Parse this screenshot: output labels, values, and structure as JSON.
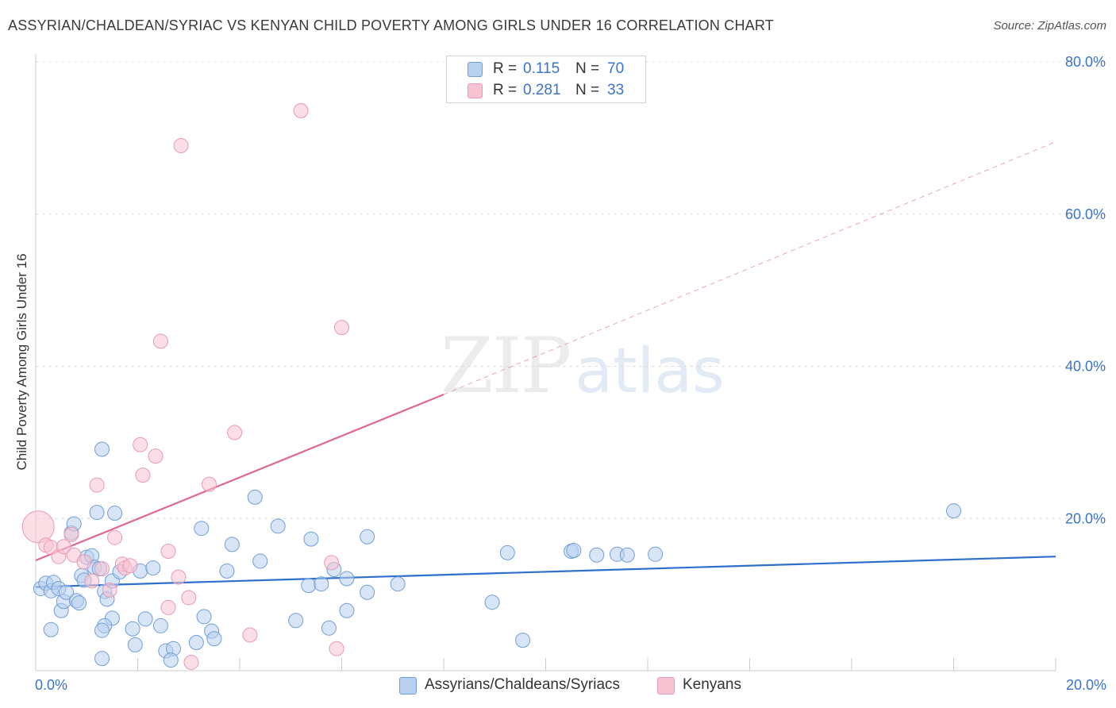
{
  "header": {
    "title": "ASSYRIAN/CHALDEAN/SYRIAC VS KENYAN CHILD POVERTY AMONG GIRLS UNDER 16 CORRELATION CHART",
    "source": "Source: ZipAtlas.com"
  },
  "watermark": {
    "zip": "ZIP",
    "atlas": "atlas"
  },
  "legend": {
    "rows": [
      {
        "r_label": "R =",
        "r_value": "0.115",
        "n_label": "N =",
        "n_value": "70"
      },
      {
        "r_label": "R =",
        "r_value": "0.281",
        "n_label": "N =",
        "n_value": "33"
      }
    ]
  },
  "bottom_legend": {
    "series_a": "Assyrians/Chaldeans/Syriacs",
    "series_b": "Kenyans"
  },
  "colors": {
    "blue_fill": "#b8d0f0",
    "blue_stroke": "#6f9ed8",
    "blue_line": "#2f6fcc",
    "pink_fill": "#f7c3d2",
    "pink_stroke": "#e79ab2",
    "pink_line": "#e0678f",
    "axis_text": "#3a74c9",
    "grid": "#dddddd"
  },
  "chart_data": {
    "type": "scatter",
    "title": "ASSYRIAN/CHALDEAN/SYRIAC VS KENYAN CHILD POVERTY AMONG GIRLS UNDER 16 CORRELATION CHART",
    "xlabel": "",
    "ylabel": "Child Poverty Among Girls Under 16",
    "xlim": [
      0,
      20
    ],
    "ylim": [
      0,
      80
    ],
    "x_tick_labels": [
      {
        "value": 0,
        "label": "0.0%"
      },
      {
        "value": 20,
        "label": "20.0%"
      }
    ],
    "y_tick_labels": [
      {
        "value": 20,
        "label": "20.0%"
      },
      {
        "value": 40,
        "label": "40.0%"
      },
      {
        "value": 60,
        "label": "60.0%"
      },
      {
        "value": 80,
        "label": "80.0%"
      }
    ],
    "x_minor_ticks": [
      2,
      4,
      6,
      8,
      10,
      12,
      14,
      16,
      18,
      20
    ],
    "series": [
      {
        "name": "Assyrians/Chaldeans/Syriacs",
        "color": "blue",
        "points": [
          [
            0.1,
            10.8
          ],
          [
            0.2,
            11.5
          ],
          [
            0.3,
            10.5
          ],
          [
            0.35,
            11.6
          ],
          [
            0.45,
            10.8
          ],
          [
            0.5,
            7.9
          ],
          [
            0.55,
            9.1
          ],
          [
            0.6,
            10.3
          ],
          [
            0.7,
            18.1
          ],
          [
            0.75,
            19.3
          ],
          [
            0.8,
            9.2
          ],
          [
            0.85,
            8.9
          ],
          [
            0.9,
            12.5
          ],
          [
            0.95,
            11.9
          ],
          [
            1.0,
            14.9
          ],
          [
            1.1,
            15.1
          ],
          [
            1.15,
            13.6
          ],
          [
            1.2,
            20.8
          ],
          [
            1.25,
            13.4
          ],
          [
            1.3,
            29.1
          ],
          [
            1.35,
            10.4
          ],
          [
            1.4,
            9.4
          ],
          [
            1.5,
            11.8
          ],
          [
            1.55,
            20.7
          ],
          [
            1.65,
            13.0
          ],
          [
            1.5,
            6.9
          ],
          [
            1.35,
            5.9
          ],
          [
            1.3,
            5.3
          ],
          [
            1.9,
            5.5
          ],
          [
            1.95,
            3.4
          ],
          [
            2.05,
            13.1
          ],
          [
            2.15,
            6.8
          ],
          [
            2.3,
            13.5
          ],
          [
            2.45,
            5.9
          ],
          [
            2.55,
            2.6
          ],
          [
            2.7,
            2.9
          ],
          [
            2.65,
            1.4
          ],
          [
            3.25,
            18.7
          ],
          [
            3.3,
            7.1
          ],
          [
            3.45,
            5.2
          ],
          [
            3.5,
            4.2
          ],
          [
            3.75,
            13.1
          ],
          [
            3.85,
            16.6
          ],
          [
            4.3,
            22.8
          ],
          [
            4.4,
            14.4
          ],
          [
            4.75,
            19.0
          ],
          [
            5.1,
            6.6
          ],
          [
            5.35,
            11.2
          ],
          [
            5.4,
            17.3
          ],
          [
            5.6,
            11.4
          ],
          [
            5.75,
            5.6
          ],
          [
            5.85,
            13.3
          ],
          [
            6.1,
            12.1
          ],
          [
            6.1,
            7.9
          ],
          [
            6.5,
            10.3
          ],
          [
            6.5,
            17.6
          ],
          [
            7.1,
            11.4
          ],
          [
            8.95,
            9.0
          ],
          [
            9.25,
            15.5
          ],
          [
            9.55,
            4.0
          ],
          [
            10.5,
            15.7
          ],
          [
            10.55,
            15.8
          ],
          [
            11.0,
            15.2
          ],
          [
            11.4,
            15.3
          ],
          [
            11.6,
            15.2
          ],
          [
            12.15,
            15.3
          ],
          [
            18.0,
            21.0
          ],
          [
            1.3,
            1.6
          ],
          [
            0.3,
            5.4
          ],
          [
            3.15,
            3.7
          ]
        ],
        "trend": {
          "x": [
            0,
            20
          ],
          "y": [
            11.0,
            15.0
          ],
          "style": "solid"
        }
      },
      {
        "name": "Kenyans",
        "color": "pink",
        "points": [
          [
            0.05,
            18.9
          ],
          [
            0.2,
            16.5
          ],
          [
            0.3,
            16.2
          ],
          [
            0.45,
            15.0
          ],
          [
            0.55,
            16.3
          ],
          [
            0.7,
            17.9
          ],
          [
            0.75,
            15.2
          ],
          [
            0.95,
            14.3
          ],
          [
            1.1,
            11.8
          ],
          [
            1.2,
            24.4
          ],
          [
            1.3,
            13.4
          ],
          [
            1.45,
            10.6
          ],
          [
            1.55,
            17.5
          ],
          [
            1.7,
            14.0
          ],
          [
            1.75,
            13.5
          ],
          [
            1.85,
            13.8
          ],
          [
            2.05,
            29.7
          ],
          [
            2.1,
            25.7
          ],
          [
            2.35,
            28.2
          ],
          [
            2.45,
            43.3
          ],
          [
            2.6,
            15.7
          ],
          [
            2.6,
            8.3
          ],
          [
            2.8,
            12.3
          ],
          [
            2.85,
            69.0
          ],
          [
            3.0,
            9.6
          ],
          [
            3.05,
            1.1
          ],
          [
            3.4,
            24.5
          ],
          [
            3.9,
            31.3
          ],
          [
            4.2,
            4.7
          ],
          [
            5.2,
            73.6
          ],
          [
            5.8,
            14.2
          ],
          [
            5.9,
            2.9
          ],
          [
            6.0,
            45.1
          ]
        ],
        "trend": {
          "x": [
            0,
            8.0
          ],
          "y": [
            14.5,
            36.3
          ],
          "style": "solid"
        },
        "trend_extension": {
          "x": [
            8.0,
            20
          ],
          "y": [
            36.3,
            69.5
          ],
          "style": "dashed"
        }
      }
    ]
  }
}
